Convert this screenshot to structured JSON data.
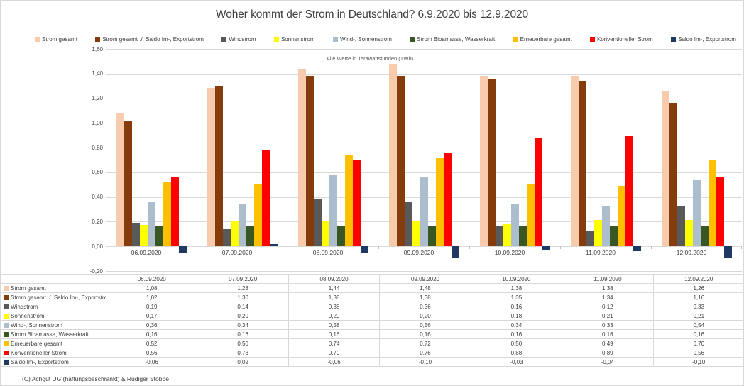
{
  "title": "Woher kommt der Strom in Deutschland? 6.9.2020 bis 12.9.2020",
  "annotation": "Alle Werte in Terawattstunden (TWh)",
  "footer": "(C) Achgut UG (haftungsbeschränkt) & Rüdiger Stobbe",
  "colors": {
    "grid": "#d9d9d9",
    "text": "#404040"
  },
  "chart_data": {
    "type": "bar",
    "title": "Woher kommt der Strom in Deutschland? 6.9.2020 bis 12.9.2020",
    "subtitle": "Alle Werte in Terawattstunden (TWh)",
    "xlabel": "",
    "ylabel": "",
    "ylim": [
      -0.2,
      1.6
    ],
    "ytick_step": 0.2,
    "grid": true,
    "legend_position": "top",
    "value_format": "comma-decimal",
    "categories": [
      "06.09.2020",
      "07.09.2020",
      "08.09.2020",
      "09.09.2020",
      "10.09.2020",
      "11.09.2020",
      "12.09.2020"
    ],
    "series": [
      {
        "name": "Strom gesamt",
        "color": "#F8CBAD",
        "values": [
          1.08,
          1.28,
          1.44,
          1.48,
          1.38,
          1.38,
          1.26
        ]
      },
      {
        "name": "Strom gesamt ./. Saldo Im-, Exportstrom",
        "color": "#843C0C",
        "values": [
          1.02,
          1.3,
          1.38,
          1.38,
          1.35,
          1.34,
          1.16
        ]
      },
      {
        "name": "Windstrom",
        "color": "#595959",
        "values": [
          0.19,
          0.14,
          0.38,
          0.36,
          0.16,
          0.12,
          0.33
        ]
      },
      {
        "name": "Sonnenstrom",
        "color": "#FFFF00",
        "values": [
          0.17,
          0.2,
          0.2,
          0.2,
          0.18,
          0.21,
          0.21
        ]
      },
      {
        "name": "Wind-, Sonnenstrom",
        "color": "#ACBDCE",
        "values": [
          0.36,
          0.34,
          0.58,
          0.56,
          0.34,
          0.33,
          0.54
        ]
      },
      {
        "name": "Strom Bioamasse, Wasserkraft",
        "color": "#385723",
        "values": [
          0.16,
          0.16,
          0.16,
          0.16,
          0.16,
          0.16,
          0.16
        ]
      },
      {
        "name": "Erneuerbare gesamt",
        "color": "#FFC000",
        "values": [
          0.52,
          0.5,
          0.74,
          0.72,
          0.5,
          0.49,
          0.7
        ]
      },
      {
        "name": "Konventioneller Strom",
        "color": "#FF0000",
        "values": [
          0.56,
          0.78,
          0.7,
          0.76,
          0.88,
          0.89,
          0.56
        ]
      },
      {
        "name": "Saldo Im-, Exportstrom",
        "color": "#1F3864",
        "values": [
          -0.06,
          0.02,
          -0.06,
          -0.1,
          -0.03,
          -0.04,
          -0.1
        ]
      }
    ]
  }
}
